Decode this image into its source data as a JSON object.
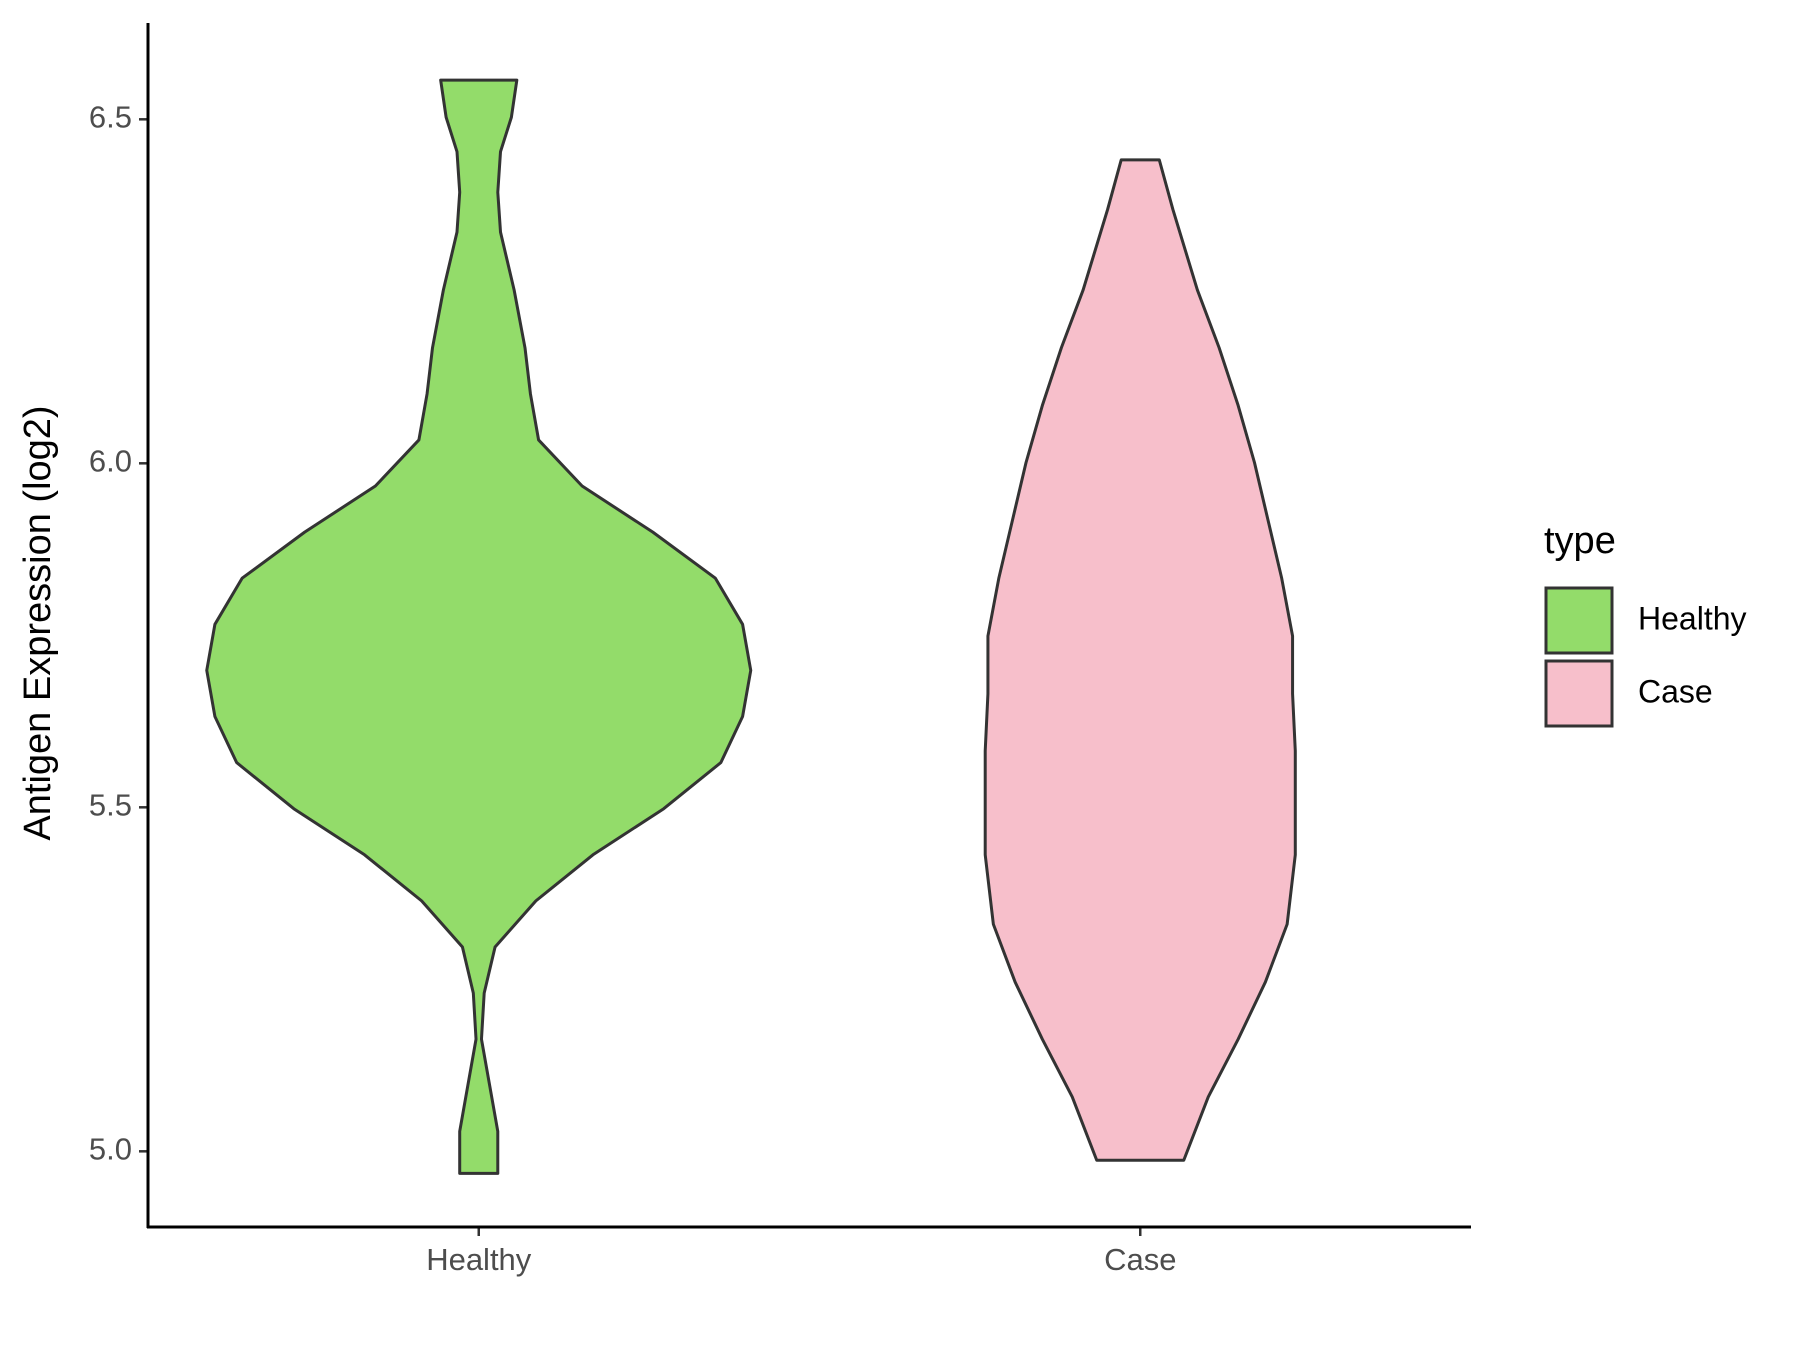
{
  "chart_data": {
    "type": "violin",
    "y_label": "Antigen Expression (log2)",
    "categories": [
      "Healthy",
      "Case"
    ],
    "legend_title": "type",
    "legend_position": "right",
    "ylim": [
      4.89,
      6.64
    ],
    "yticks": [
      {
        "value": 5,
        "label": "5.0"
      },
      5.5,
      {
        "value": 6,
        "label": "6.0"
      },
      6.5
    ],
    "series": [
      {
        "name": "Healthy",
        "color": "#93dc6a",
        "y": [
          6.557,
          6.503,
          6.453,
          6.394,
          6.336,
          6.252,
          6.168,
          6.101,
          6.034,
          5.967,
          5.9,
          5.833,
          5.766,
          5.699,
          5.632,
          5.565,
          5.498,
          5.431,
          5.364,
          5.297,
          5.23,
          5.163,
          5.096,
          5.029,
          4.968
        ],
        "density": [
          0.14,
          0.12,
          0.08,
          0.07,
          0.08,
          0.13,
          0.17,
          0.19,
          0.22,
          0.38,
          0.64,
          0.87,
          0.97,
          1.0,
          0.97,
          0.89,
          0.68,
          0.42,
          0.21,
          0.06,
          0.02,
          0.01,
          0.04,
          0.07,
          0.07
        ]
      },
      {
        "name": "Case",
        "color": "#f7bfcb",
        "y": [
          6.441,
          6.369,
          6.252,
          6.168,
          6.084,
          6.001,
          5.917,
          5.833,
          5.749,
          5.665,
          5.582,
          5.498,
          5.431,
          5.33,
          5.246,
          5.163,
          5.079,
          4.987
        ],
        "density": [
          0.07,
          0.12,
          0.21,
          0.29,
          0.36,
          0.42,
          0.47,
          0.52,
          0.56,
          0.56,
          0.57,
          0.57,
          0.57,
          0.54,
          0.46,
          0.36,
          0.25,
          0.16
        ]
      }
    ]
  }
}
